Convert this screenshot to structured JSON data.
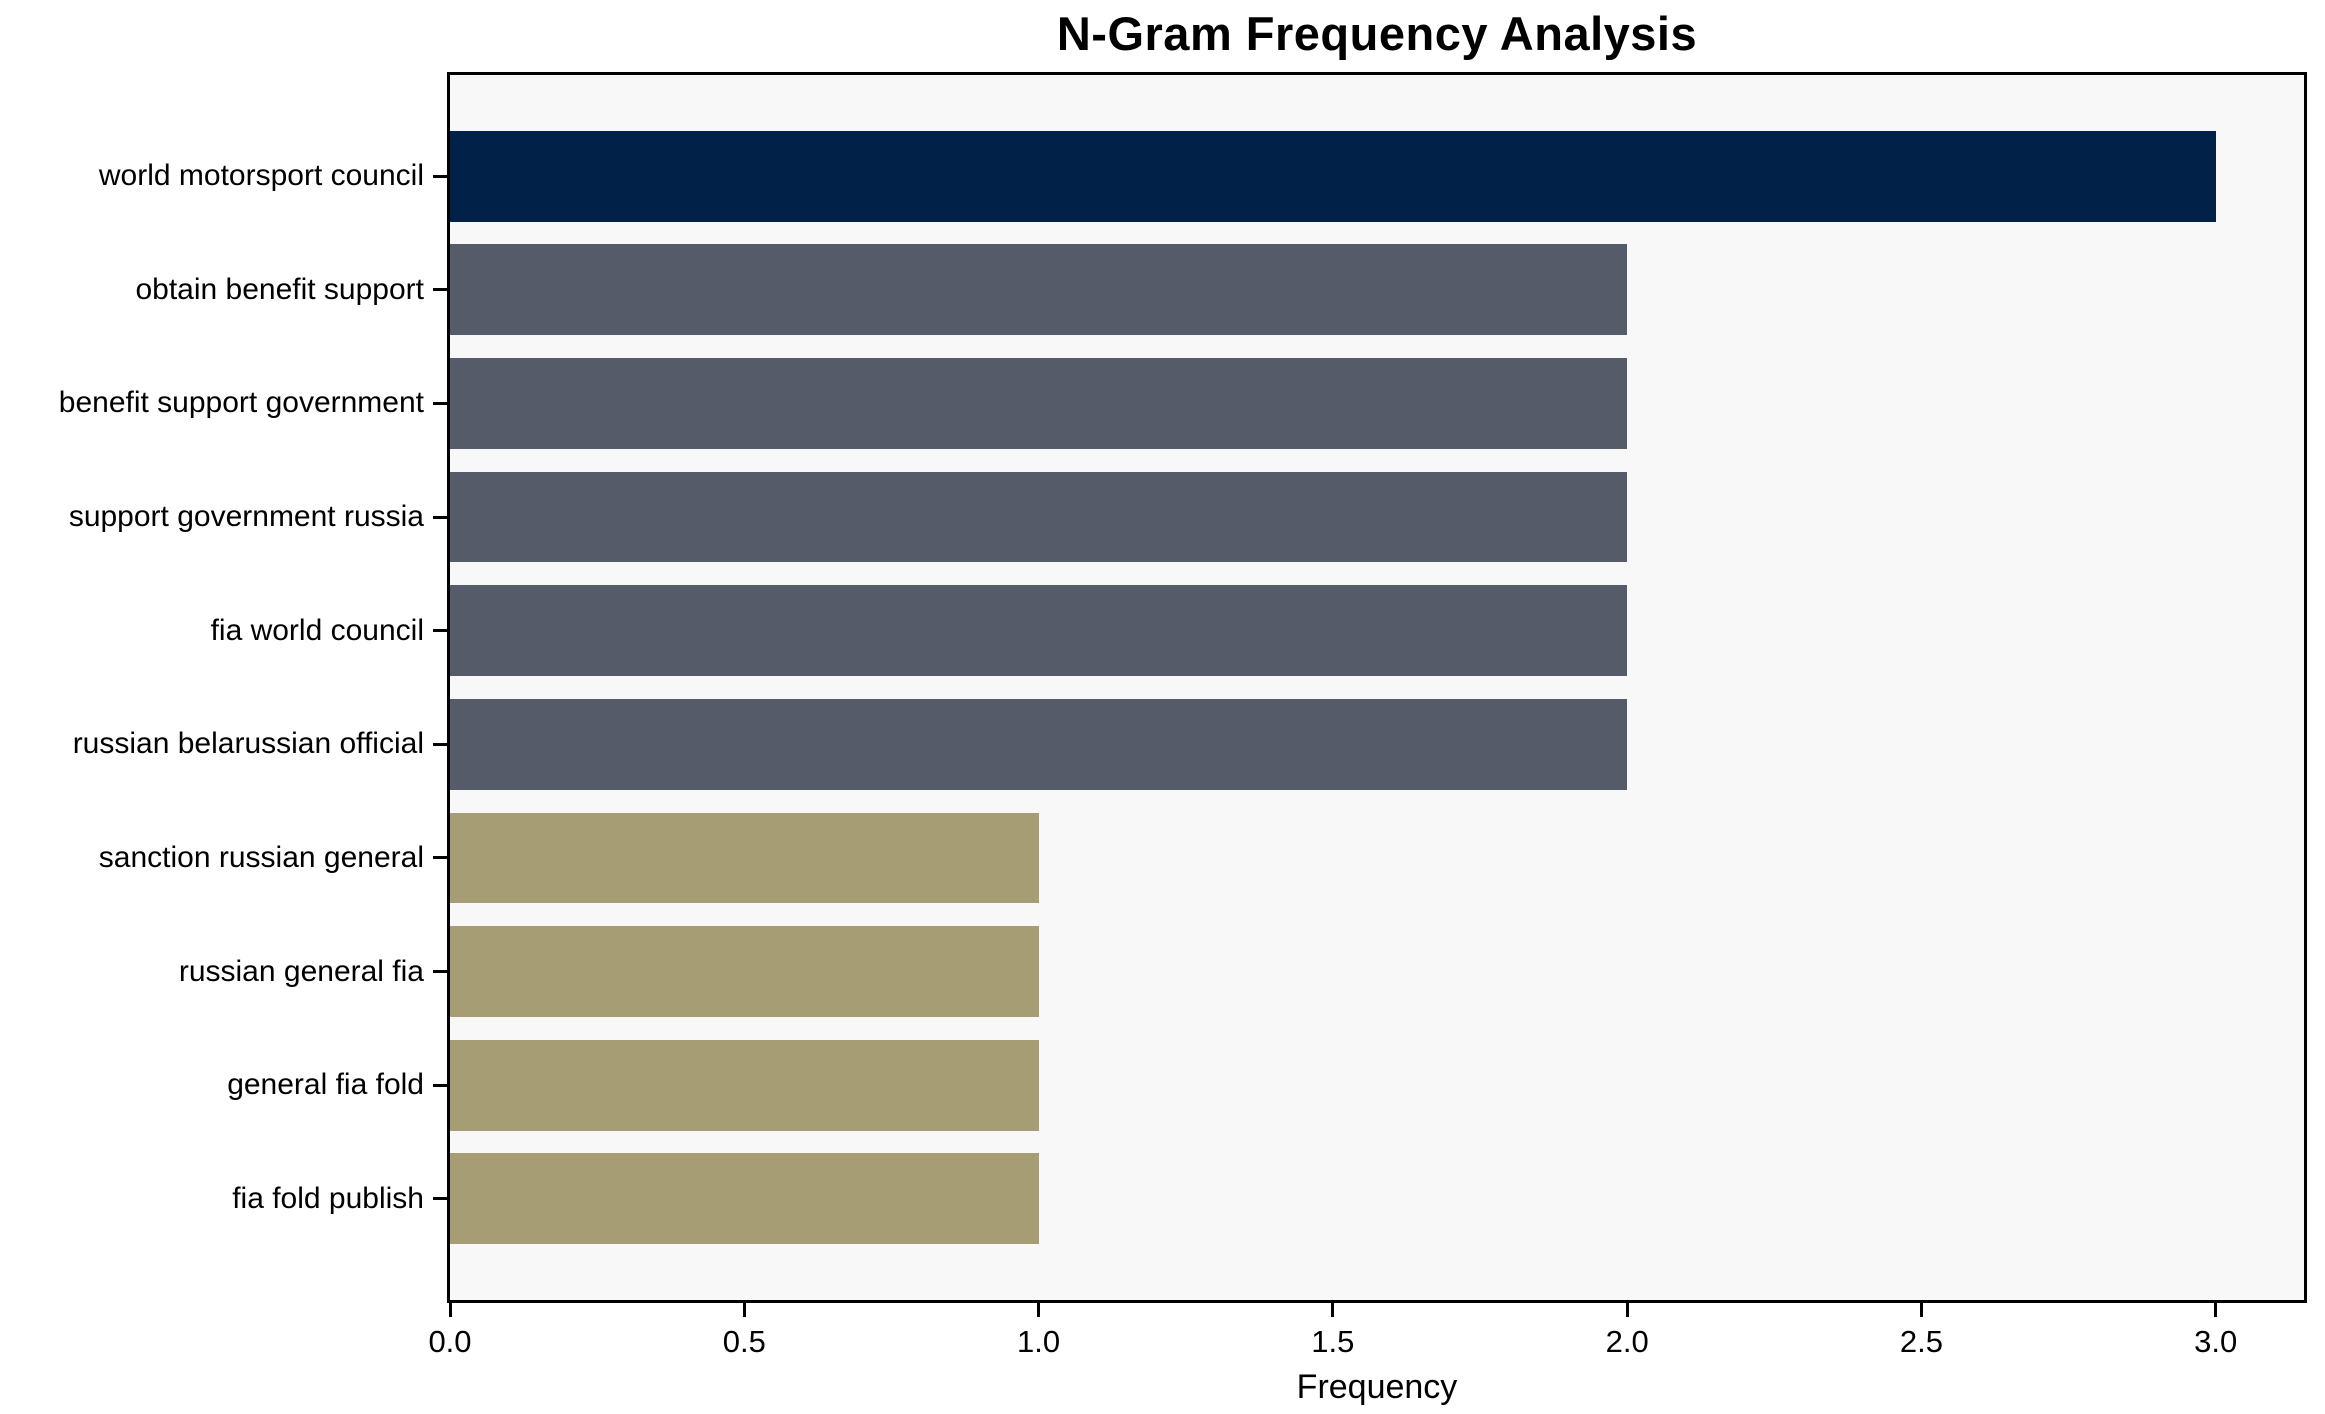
{
  "chart_data": {
    "type": "bar",
    "orientation": "horizontal",
    "title": "N-Gram Frequency Analysis",
    "xlabel": "Frequency",
    "ylabel": "",
    "categories": [
      "world motorsport council",
      "obtain benefit support",
      "benefit support government",
      "support government russia",
      "fia world council",
      "russian belarussian official",
      "sanction russian general",
      "russian general fia",
      "general fia fold",
      "fia fold publish"
    ],
    "values": [
      3,
      2,
      2,
      2,
      2,
      2,
      1,
      1,
      1,
      1
    ],
    "bar_colors": [
      "#012149",
      "#565b69",
      "#565b69",
      "#565b69",
      "#565b69",
      "#565b69",
      "#a69d74",
      "#a69d74",
      "#a69d74",
      "#a69d74"
    ],
    "xlim": [
      0,
      3.15
    ],
    "xticks": [
      0.0,
      0.5,
      1.0,
      1.5,
      2.0,
      2.5,
      3.0
    ],
    "xtick_labels": [
      "0.0",
      "0.5",
      "1.0",
      "1.5",
      "2.0",
      "2.5",
      "3.0"
    ],
    "bar_height_fraction": 0.8,
    "grid": false,
    "legend": null,
    "colors": {
      "value_3_bar": "#012149",
      "value_2_bar": "#565b69",
      "value_1_bar": "#a69d74",
      "plot_background": "#f8f8f8",
      "figure_background": "#ffffff",
      "spine": "#000000",
      "text": "#000000"
    }
  }
}
